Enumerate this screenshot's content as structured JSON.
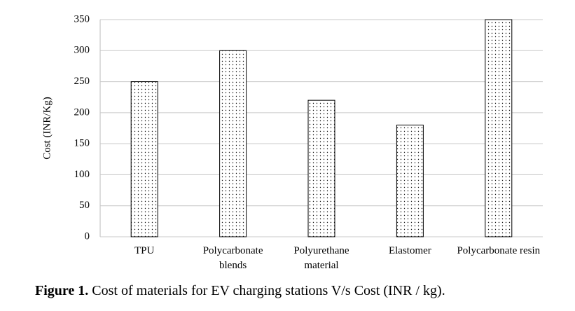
{
  "chart_data": {
    "type": "bar",
    "ylabel": "Cost (INR/Kg)",
    "categories": [
      "TPU",
      "Polycarbonate blends",
      "Polyurethane material",
      "Elastomer",
      "Polycarbonate resin"
    ],
    "values": [
      250,
      300,
      220,
      180,
      350
    ],
    "color": "#000000",
    "ylim": [
      0,
      350
    ],
    "yticks": [
      0,
      50,
      100,
      150,
      200,
      250,
      300,
      350
    ],
    "grid": true
  },
  "caption": {
    "label": "Figure 1.",
    "text": "Cost of materials for EV charging stations V/s Cost (INR / kg)."
  }
}
